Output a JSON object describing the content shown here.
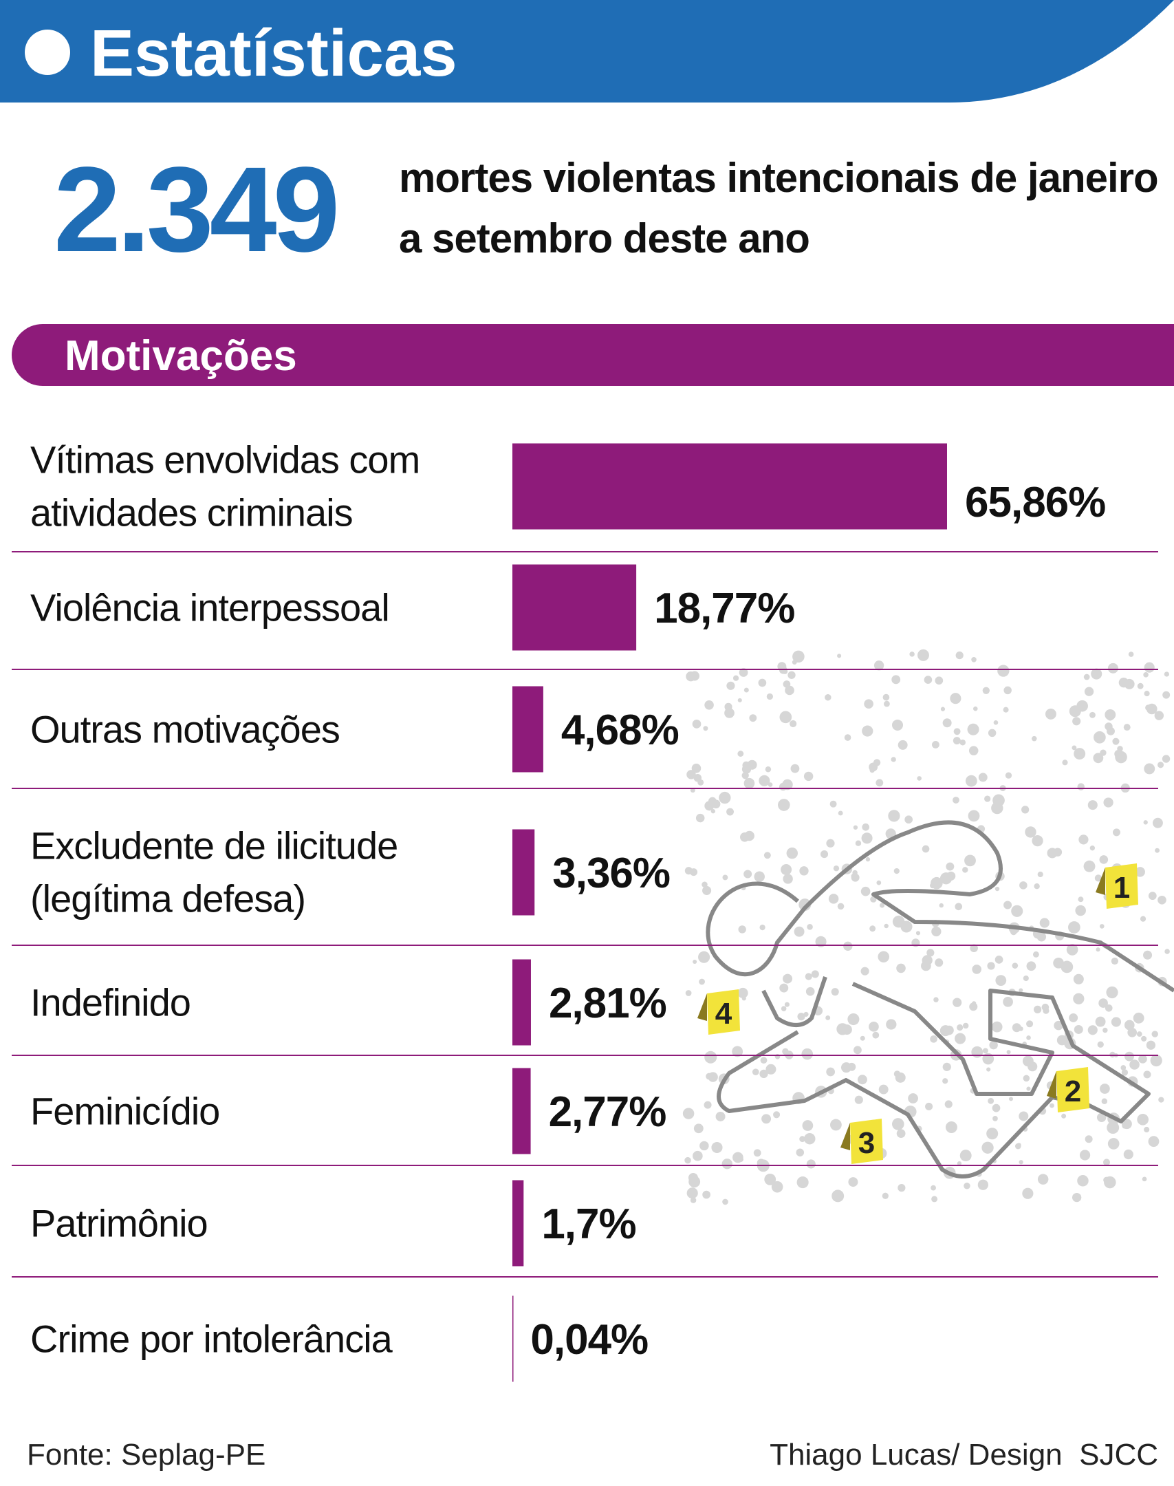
{
  "header": {
    "title": "Estatísticas"
  },
  "highlight": {
    "number": "2.349",
    "text": "mortes violentas intencionais de janeiro a setembro deste ano"
  },
  "chart_data": {
    "type": "hbar",
    "title": "Motivações",
    "categories": [
      "Vítimas envolvidas com atividades criminais",
      "Violência interpessoal",
      "Outras motivações",
      "Excludente de ilicitude (legítima defesa)",
      "Indefinido",
      "Feminicídio",
      "Patrimônio",
      "Crime por intolerância"
    ],
    "values": [
      65.86,
      18.77,
      4.68,
      3.36,
      2.81,
      2.77,
      1.7,
      0.04
    ],
    "value_labels": [
      "65,86%",
      "18,77%",
      "4,68%",
      "3,36%",
      "2,81%",
      "2,77%",
      "1,7%",
      "0,04%"
    ],
    "color": "#8e1b7a",
    "annotations": [
      "1",
      "2",
      "3",
      "4"
    ]
  },
  "footer": {
    "source": "Fonte: Seplag-PE",
    "credit": "Thiago Lucas/ Design  SJCC"
  }
}
